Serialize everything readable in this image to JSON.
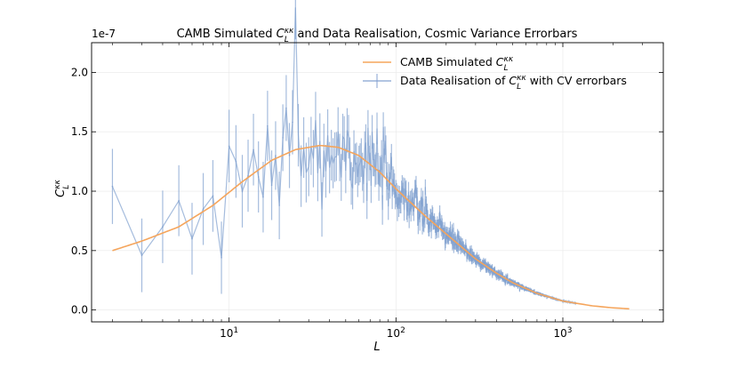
{
  "chart_data": {
    "type": "line",
    "title": "CAMB Simulated C_L^κκ and Data Realisation, Cosmic Variance Errorbars",
    "xlabel": "L",
    "ylabel": "C_L^κκ",
    "xscale": "log",
    "xlim": [
      1.5,
      4000
    ],
    "ylim": [
      -0.1,
      2.25
    ],
    "y_multiplier_label": "1e-7",
    "x_ticks": [
      {
        "value": 10,
        "base": "10",
        "exp": "1"
      },
      {
        "value": 100,
        "base": "10",
        "exp": "2"
      },
      {
        "value": 1000,
        "base": "10",
        "exp": "3"
      }
    ],
    "y_ticks": [
      "0.0",
      "0.5",
      "1.0",
      "1.5",
      "2.0"
    ],
    "grid": true,
    "legend_position": "upper-right",
    "series": [
      {
        "name": "CAMB Simulated C_L^κκ",
        "kind": "theory",
        "color": "#f5a55c",
        "x": [
          2,
          3,
          5,
          8,
          12,
          18,
          25,
          35,
          45,
          60,
          80,
          100,
          150,
          200,
          300,
          400,
          500,
          700,
          1000,
          1500,
          2000,
          2500
        ],
        "y": [
          0.5,
          0.58,
          0.7,
          0.88,
          1.08,
          1.26,
          1.35,
          1.385,
          1.37,
          1.3,
          1.16,
          1.02,
          0.79,
          0.64,
          0.43,
          0.31,
          0.23,
          0.14,
          0.075,
          0.035,
          0.018,
          0.01
        ]
      },
      {
        "name": "Data Realisation of C_L^κκ with CV errorbars",
        "kind": "data",
        "color": "#7f9fcf",
        "x": [
          2,
          3,
          4,
          5,
          6,
          7,
          8,
          9,
          10,
          11,
          12,
          13,
          14,
          15,
          16,
          17,
          18,
          19,
          20,
          21,
          22,
          23,
          24
        ],
        "y": [
          1.04,
          0.46,
          0.7,
          0.92,
          0.6,
          0.85,
          0.96,
          0.44,
          1.38,
          1.25,
          1.0,
          1.13,
          1.35,
          1.12,
          0.95,
          1.55,
          1.05,
          1.3,
          0.88,
          1.45,
          1.7,
          1.3,
          1.58
        ],
        "noise_region": {
          "x_start": 25,
          "x_end": 1200,
          "relative_scatter_at_start": 0.15
        }
      }
    ]
  },
  "legend": {
    "theory_prefix": "CAMB Simulated ",
    "data_prefix": "Data Realisation of ",
    "data_suffix": " with CV errorbars"
  },
  "symbols": {
    "C": "C",
    "sub_L": "L",
    "sup_kk": "κκ",
    "L": "L"
  },
  "title_parts": {
    "prefix": "CAMB Simulated ",
    "suffix": " and Data Realisation, Cosmic Variance Errorbars"
  }
}
